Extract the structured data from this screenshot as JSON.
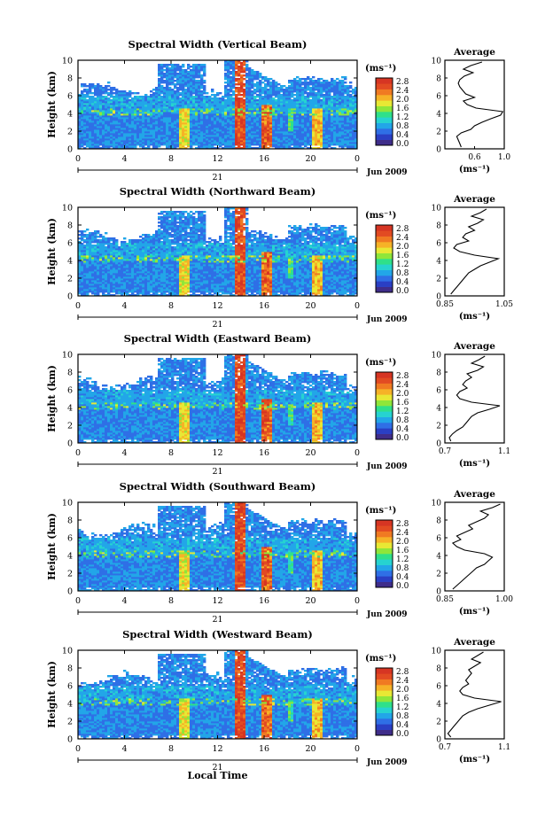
{
  "colors": {
    "scale": [
      "#3f2d8a",
      "#2a3fc4",
      "#2f6fe6",
      "#22a6e8",
      "#26d3d0",
      "#2fe08a",
      "#8fe63a",
      "#e8e834",
      "#f6b227",
      "#f07a22",
      "#e24b22",
      "#d63523"
    ]
  },
  "colorbar": {
    "unit": "(ms⁻¹)",
    "ticks": [
      "2.8",
      "2.4",
      "2.0",
      "1.6",
      "1.2",
      "0.8",
      "0.4",
      "0.0"
    ]
  },
  "common": {
    "ylabel": "Height (km)",
    "avg_title": "Average",
    "avg_unit": "(ms⁻¹)",
    "date_label": "Jun 2009",
    "day_label": "21",
    "xlabel": "Local Time"
  },
  "chart_data": [
    {
      "type": "heatmap",
      "title": "Spectral Width (Vertical Beam)",
      "xlabel": "",
      "ylabel": "Height (km)",
      "x_ticks": [
        "0",
        "4",
        "8",
        "12",
        "16",
        "20",
        "0"
      ],
      "y_ticks": [
        "0",
        "2",
        "4",
        "6",
        "8",
        "10"
      ],
      "xlim": [
        0,
        24
      ],
      "ylim": [
        0,
        10
      ],
      "profile": {
        "type": "line",
        "title": "Average",
        "xlabel": "(ms⁻¹)",
        "xlim": [
          0.2,
          1.0
        ],
        "x_ticks": [
          "0.6",
          "1.0"
        ],
        "heights": [
          0.2,
          0.6,
          1.0,
          1.4,
          1.8,
          2.2,
          2.6,
          3.0,
          3.4,
          3.8,
          4.2,
          4.6,
          5.0,
          5.4,
          5.8,
          6.2,
          6.6,
          7.0,
          7.4,
          7.8,
          8.2,
          8.6,
          9.0,
          9.4,
          9.8
        ],
        "values": [
          0.42,
          0.4,
          0.38,
          0.36,
          0.42,
          0.55,
          0.6,
          0.7,
          0.82,
          0.95,
          0.98,
          0.62,
          0.5,
          0.45,
          0.6,
          0.48,
          0.44,
          0.4,
          0.38,
          0.4,
          0.46,
          0.58,
          0.45,
          0.55,
          0.7
        ]
      }
    },
    {
      "type": "heatmap",
      "title": "Spectral Width (Northward Beam)",
      "xlabel": "",
      "ylabel": "Height (km)",
      "x_ticks": [
        "0",
        "4",
        "8",
        "12",
        "16",
        "20",
        "0"
      ],
      "y_ticks": [
        "0",
        "2",
        "4",
        "6",
        "8",
        "10"
      ],
      "xlim": [
        0,
        24
      ],
      "ylim": [
        0,
        10
      ],
      "profile": {
        "type": "line",
        "title": "Average",
        "xlabel": "(ms⁻¹)",
        "xlim": [
          0.85,
          1.05
        ],
        "x_ticks": [
          "0.85",
          "1.05"
        ],
        "heights": [
          0.2,
          0.6,
          1.0,
          1.4,
          1.8,
          2.2,
          2.6,
          3.0,
          3.4,
          3.8,
          4.2,
          4.6,
          5.0,
          5.4,
          5.8,
          6.2,
          6.6,
          7.0,
          7.4,
          7.8,
          8.2,
          8.6,
          9.0,
          9.4,
          9.8
        ],
        "values": [
          0.87,
          0.88,
          0.89,
          0.9,
          0.91,
          0.92,
          0.93,
          0.95,
          0.97,
          1.0,
          1.03,
          0.95,
          0.9,
          0.88,
          0.89,
          0.93,
          0.91,
          0.92,
          0.95,
          0.93,
          0.96,
          0.98,
          0.94,
          0.97,
          0.99
        ]
      }
    },
    {
      "type": "heatmap",
      "title": "Spectral Width (Eastward Beam)",
      "xlabel": "",
      "ylabel": "Height (km)",
      "x_ticks": [
        "0",
        "4",
        "8",
        "12",
        "16",
        "20",
        "0"
      ],
      "y_ticks": [
        "0",
        "2",
        "4",
        "6",
        "8",
        "10"
      ],
      "xlim": [
        0,
        24
      ],
      "ylim": [
        0,
        10
      ],
      "profile": {
        "type": "line",
        "title": "Average",
        "xlabel": "(ms⁻¹)",
        "xlim": [
          0.7,
          1.1
        ],
        "x_ticks": [
          "0.7",
          "1.1"
        ],
        "heights": [
          0.2,
          0.6,
          1.0,
          1.4,
          1.8,
          2.2,
          2.6,
          3.0,
          3.4,
          3.8,
          4.2,
          4.6,
          5.0,
          5.4,
          5.8,
          6.2,
          6.6,
          7.0,
          7.4,
          7.8,
          8.2,
          8.6,
          9.0,
          9.4,
          9.8
        ],
        "values": [
          0.74,
          0.73,
          0.75,
          0.78,
          0.82,
          0.84,
          0.86,
          0.88,
          0.92,
          1.0,
          1.07,
          0.88,
          0.8,
          0.78,
          0.8,
          0.85,
          0.82,
          0.84,
          0.88,
          0.85,
          0.92,
          0.96,
          0.88,
          0.93,
          0.97
        ]
      }
    },
    {
      "type": "heatmap",
      "title": "Spectral Width (Southward Beam)",
      "xlabel": "",
      "ylabel": "Height (km)",
      "x_ticks": [
        "0",
        "4",
        "8",
        "12",
        "16",
        "20",
        "0"
      ],
      "y_ticks": [
        "0",
        "2",
        "4",
        "6",
        "8",
        "10"
      ],
      "xlim": [
        0,
        24
      ],
      "ylim": [
        0,
        10
      ],
      "profile": {
        "type": "line",
        "title": "Average",
        "xlabel": "(ms⁻¹)",
        "xlim": [
          0.85,
          1.0
        ],
        "x_ticks": [
          "0.85",
          "1.00"
        ],
        "heights": [
          0.2,
          0.6,
          1.0,
          1.4,
          1.8,
          2.2,
          2.6,
          3.0,
          3.4,
          3.8,
          4.2,
          4.6,
          5.0,
          5.4,
          5.8,
          6.2,
          6.6,
          7.0,
          7.4,
          7.8,
          8.2,
          8.6,
          9.0,
          9.4,
          9.8
        ],
        "values": [
          0.87,
          0.88,
          0.89,
          0.9,
          0.91,
          0.92,
          0.93,
          0.95,
          0.96,
          0.97,
          0.95,
          0.9,
          0.88,
          0.87,
          0.89,
          0.88,
          0.9,
          0.92,
          0.91,
          0.93,
          0.95,
          0.96,
          0.94,
          0.97,
          0.99
        ]
      }
    },
    {
      "type": "heatmap",
      "title": "Spectral Width (Westward Beam)",
      "xlabel": "Local Time",
      "ylabel": "Height (km)",
      "x_ticks": [
        "0",
        "4",
        "8",
        "12",
        "16",
        "20",
        "0"
      ],
      "y_ticks": [
        "0",
        "2",
        "4",
        "6",
        "8",
        "10"
      ],
      "xlim": [
        0,
        24
      ],
      "ylim": [
        0,
        10
      ],
      "profile": {
        "type": "line",
        "title": "Average",
        "xlabel": "(ms⁻¹)",
        "xlim": [
          0.7,
          1.1
        ],
        "x_ticks": [
          "0.7",
          "1.1"
        ],
        "heights": [
          0.2,
          0.6,
          1.0,
          1.4,
          1.8,
          2.2,
          2.6,
          3.0,
          3.4,
          3.8,
          4.2,
          4.6,
          5.0,
          5.4,
          5.8,
          6.2,
          6.6,
          7.0,
          7.4,
          7.8,
          8.2,
          8.6,
          9.0,
          9.4,
          9.8
        ],
        "values": [
          0.74,
          0.72,
          0.74,
          0.76,
          0.78,
          0.8,
          0.82,
          0.86,
          0.92,
          1.0,
          1.08,
          0.9,
          0.82,
          0.8,
          0.82,
          0.86,
          0.84,
          0.86,
          0.88,
          0.86,
          0.9,
          0.94,
          0.88,
          0.92,
          0.96
        ]
      }
    }
  ]
}
